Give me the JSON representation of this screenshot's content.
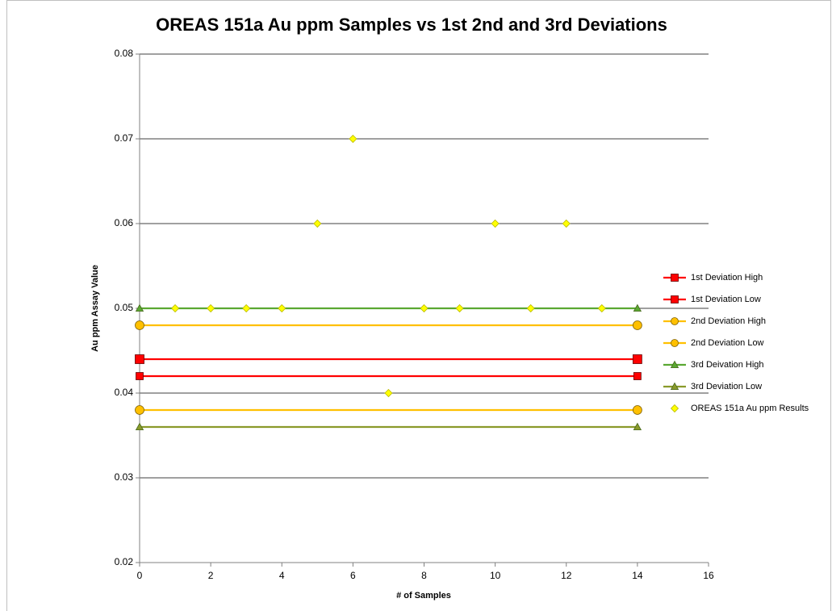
{
  "chart_data": {
    "type": "scatter",
    "title": "OREAS 151a Au ppm Samples vs 1st 2nd and 3rd Deviations",
    "xlabel": "# of Samples",
    "ylabel": "Au ppm Assay Value",
    "xlim": [
      0,
      16
    ],
    "xticks": [
      0,
      2,
      4,
      6,
      8,
      10,
      12,
      14,
      16
    ],
    "ylim": [
      0.02,
      0.08
    ],
    "yticks": [
      0.02,
      0.03,
      0.04,
      0.05,
      0.06,
      0.07,
      0.08
    ],
    "grid": true,
    "legend": "right",
    "series": [
      {
        "name": "1st Deviation High",
        "color": "#ff0000",
        "marker": "square",
        "line": true,
        "x": [
          0,
          14
        ],
        "values": [
          0.044,
          0.044
        ]
      },
      {
        "name": "1st Deviation Low",
        "color": "#ff0000",
        "marker": "square",
        "line": true,
        "x": [
          0,
          14
        ],
        "values": [
          0.042,
          0.042
        ]
      },
      {
        "name": "2nd Deviation High",
        "color": "#ffc000",
        "marker": "circle",
        "line": true,
        "x": [
          0,
          14
        ],
        "values": [
          0.048,
          0.048
        ]
      },
      {
        "name": "2nd Deviation Low",
        "color": "#ffc000",
        "marker": "circle",
        "line": true,
        "x": [
          0,
          14
        ],
        "values": [
          0.038,
          0.038
        ]
      },
      {
        "name": "3rd Deivation High",
        "color": "#5aa832",
        "marker": "triangle",
        "line": true,
        "x": [
          0,
          14
        ],
        "values": [
          0.05,
          0.05
        ]
      },
      {
        "name": "3rd Deviation Low",
        "color": "#8a9a2a",
        "marker": "triangle",
        "line": true,
        "x": [
          0,
          14
        ],
        "values": [
          0.036,
          0.036
        ]
      },
      {
        "name": "OREAS 151a Au ppm Results",
        "color": "#ffff00",
        "marker": "diamond",
        "line": false,
        "x": [
          1,
          2,
          3,
          4,
          5,
          6,
          7,
          8,
          9,
          10,
          11,
          12,
          13
        ],
        "values": [
          0.05,
          0.05,
          0.05,
          0.05,
          0.06,
          0.07,
          0.04,
          0.05,
          0.05,
          0.06,
          0.05,
          0.06,
          0.05
        ]
      }
    ]
  }
}
